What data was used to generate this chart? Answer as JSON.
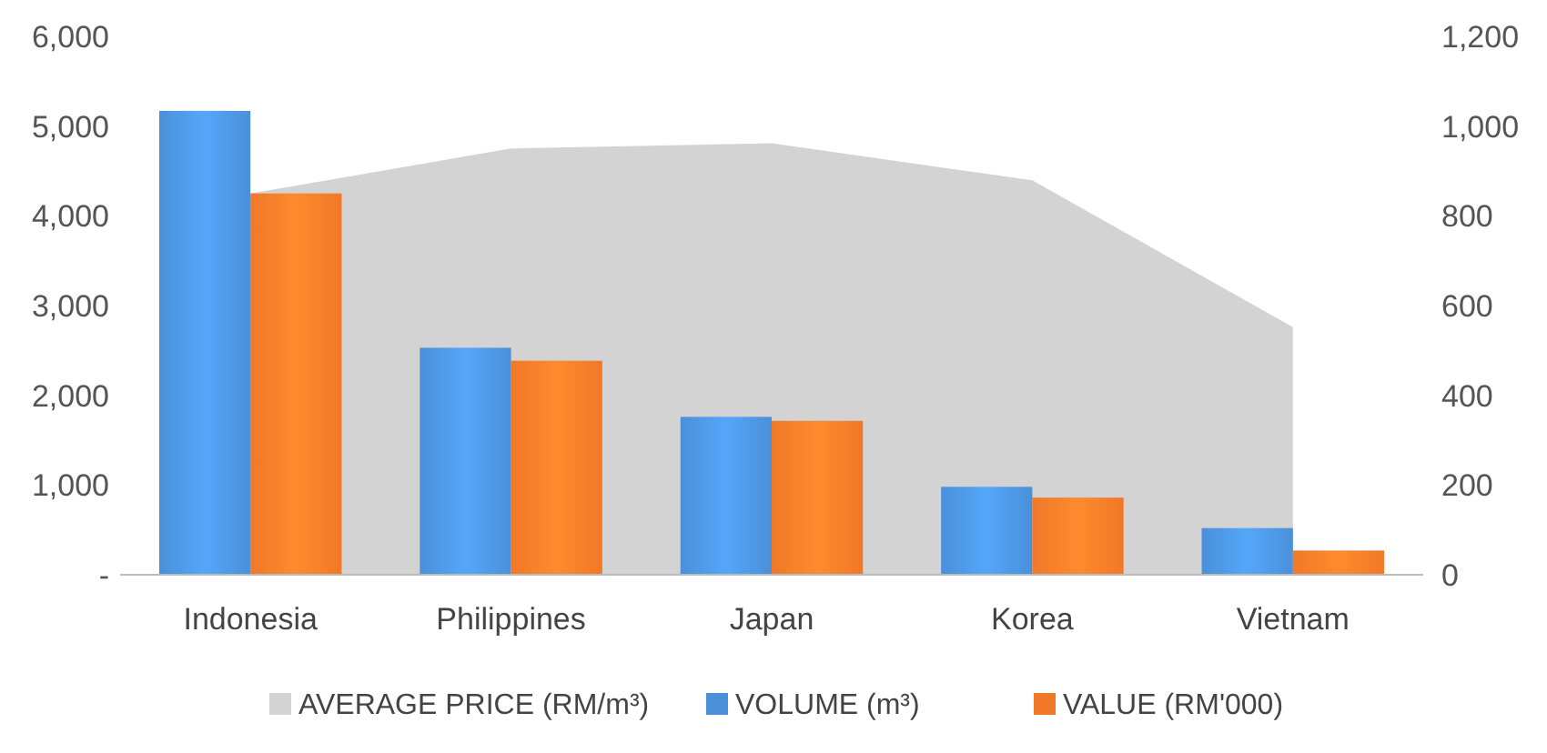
{
  "chart_data": {
    "type": "bar",
    "categories": [
      "Indonesia",
      "Philippines",
      "Japan",
      "Korea",
      "Vietnam"
    ],
    "series": [
      {
        "name": "AVERAGE PRICE (RM/m³)",
        "type": "area",
        "axis": "y2",
        "color": "#d3d3d3",
        "values": [
          850,
          950,
          962,
          879,
          552
        ]
      },
      {
        "name": "VOLUME (m³)",
        "color": "#4a90d9",
        "values": [
          5170,
          2530,
          1760,
          980,
          520
        ]
      },
      {
        "name": "VALUE (RM'000)",
        "color": "#f07828",
        "values": [
          4250,
          2385,
          1715,
          860,
          270
        ]
      }
    ],
    "ylim": [
      0,
      6000
    ],
    "yticks": [
      {
        "value": 0,
        "label": "-"
      },
      {
        "value": 1000,
        "label": "1,000"
      },
      {
        "value": 2000,
        "label": "2,000"
      },
      {
        "value": 3000,
        "label": "3,000"
      },
      {
        "value": 4000,
        "label": "4,000"
      },
      {
        "value": 5000,
        "label": "5,000"
      },
      {
        "value": 6000,
        "label": "6,000"
      }
    ],
    "y2lim": [
      0,
      1200
    ],
    "y2ticks": [
      0,
      200,
      400,
      600,
      800,
      {
        "value": 1000,
        "label": "1,000"
      },
      {
        "value": 1200,
        "label": "1,200"
      }
    ],
    "legend": "bottom",
    "grid": false
  }
}
